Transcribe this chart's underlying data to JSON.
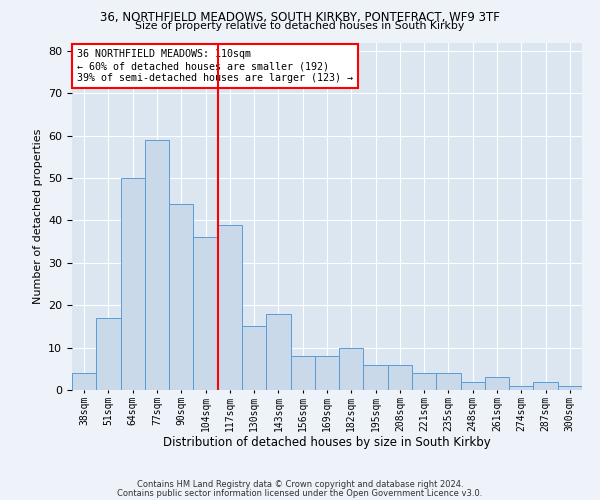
{
  "title1": "36, NORTHFIELD MEADOWS, SOUTH KIRKBY, PONTEFRACT, WF9 3TF",
  "title2": "Size of property relative to detached houses in South Kirkby",
  "xlabel": "Distribution of detached houses by size in South Kirkby",
  "ylabel": "Number of detached properties",
  "footnote1": "Contains HM Land Registry data © Crown copyright and database right 2024.",
  "footnote2": "Contains public sector information licensed under the Open Government Licence v3.0.",
  "annotation_line1": "36 NORTHFIELD MEADOWS: 110sqm",
  "annotation_line2": "← 60% of detached houses are smaller (192)",
  "annotation_line3": "39% of semi-detached houses are larger (123) →",
  "bar_color": "#c9d9ea",
  "bar_edge_color": "#5b9bd5",
  "vline_color": "red",
  "vline_position": 5.5,
  "categories": [
    "38sqm",
    "51sqm",
    "64sqm",
    "77sqm",
    "90sqm",
    "104sqm",
    "117sqm",
    "130sqm",
    "143sqm",
    "156sqm",
    "169sqm",
    "182sqm",
    "195sqm",
    "208sqm",
    "221sqm",
    "235sqm",
    "248sqm",
    "261sqm",
    "274sqm",
    "287sqm",
    "300sqm"
  ],
  "values": [
    4,
    17,
    50,
    59,
    44,
    36,
    39,
    15,
    18,
    8,
    8,
    10,
    6,
    6,
    4,
    4,
    2,
    3,
    1,
    2,
    1
  ],
  "ylim": [
    0,
    82
  ],
  "yticks": [
    0,
    10,
    20,
    30,
    40,
    50,
    60,
    70,
    80
  ],
  "background_color": "#eef2f9",
  "plot_background": "#dce6f1",
  "grid_color": "#ffffff",
  "annotation_box_color": "white",
  "annotation_box_edge": "red"
}
